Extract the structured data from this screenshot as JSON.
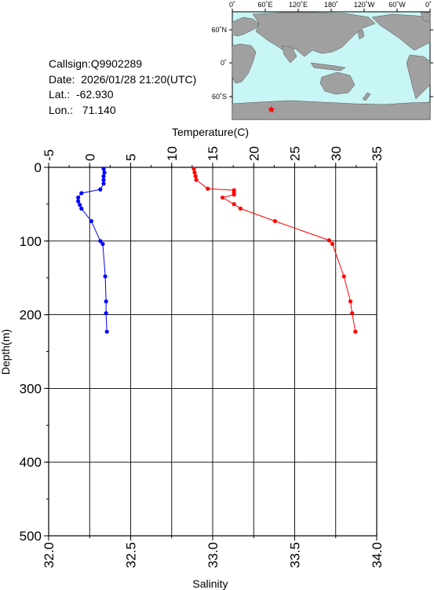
{
  "info": {
    "callsign": "Callsign:Q9902289",
    "date": "Date:  2026/01/28 21:20(UTC)",
    "lat": "Lat.:  -62.930",
    "lon": "Lon.:   71.140"
  },
  "map": {
    "lon_labels": [
      "0˚",
      "60˚E",
      "120˚E",
      "180˚",
      "120˚W",
      "60˚W",
      "0˚"
    ],
    "lat_labels": [
      "60˚N",
      "0˚",
      "60˚S"
    ],
    "marker": {
      "lon": 71.14,
      "lat": -62.93
    },
    "colors": {
      "ocean": "#c8f5f5",
      "land": "#a0a0a0",
      "marker": "#ff0000"
    }
  },
  "chart_data": {
    "type": "line",
    "title": "",
    "top_axis": {
      "label": "Temperature(C)",
      "range": [
        -5,
        35
      ],
      "ticks": [
        "-5",
        "0",
        "5",
        "10",
        "15",
        "20",
        "25",
        "30",
        "35"
      ]
    },
    "bottom_axis": {
      "label": "Salinity",
      "range": [
        32.0,
        34.0
      ],
      "ticks": [
        "32.0",
        "32.5",
        "33.0",
        "33.5",
        "34.0"
      ]
    },
    "y_axis": {
      "label": "Depth(m)",
      "range": [
        0,
        500
      ],
      "inverted": true,
      "ticks": [
        "0",
        "100",
        "200",
        "300",
        "400",
        "500"
      ]
    },
    "grid": true,
    "series": [
      {
        "axis": "top",
        "color": "#0000ff",
        "points": [
          {
            "x": 1.7,
            "y": 2
          },
          {
            "x": 1.8,
            "y": 7
          },
          {
            "x": 1.7,
            "y": 12
          },
          {
            "x": 1.7,
            "y": 17
          },
          {
            "x": 1.7,
            "y": 22
          },
          {
            "x": 1.3,
            "y": 30
          },
          {
            "x": -1.0,
            "y": 35
          },
          {
            "x": -1.4,
            "y": 41
          },
          {
            "x": -1.4,
            "y": 46
          },
          {
            "x": -1.2,
            "y": 51
          },
          {
            "x": -1.0,
            "y": 56
          },
          {
            "x": 0.2,
            "y": 73
          },
          {
            "x": 1.3,
            "y": 100
          },
          {
            "x": 1.6,
            "y": 104
          },
          {
            "x": 1.9,
            "y": 148
          },
          {
            "x": 2.0,
            "y": 182
          },
          {
            "x": 2.0,
            "y": 198
          },
          {
            "x": 2.1,
            "y": 223
          }
        ]
      },
      {
        "axis": "bottom",
        "color": "#ff0000",
        "points": [
          {
            "x": 32.885,
            "y": 2
          },
          {
            "x": 32.89,
            "y": 7
          },
          {
            "x": 32.895,
            "y": 12
          },
          {
            "x": 32.9,
            "y": 17
          },
          {
            "x": 32.97,
            "y": 29
          },
          {
            "x": 33.13,
            "y": 31
          },
          {
            "x": 33.13,
            "y": 34
          },
          {
            "x": 33.13,
            "y": 37
          },
          {
            "x": 33.06,
            "y": 41
          },
          {
            "x": 33.13,
            "y": 50
          },
          {
            "x": 33.17,
            "y": 56
          },
          {
            "x": 33.38,
            "y": 73
          },
          {
            "x": 33.71,
            "y": 99
          },
          {
            "x": 33.73,
            "y": 104
          },
          {
            "x": 33.8,
            "y": 148
          },
          {
            "x": 33.84,
            "y": 182
          },
          {
            "x": 33.85,
            "y": 198
          },
          {
            "x": 33.87,
            "y": 223
          }
        ]
      }
    ]
  }
}
